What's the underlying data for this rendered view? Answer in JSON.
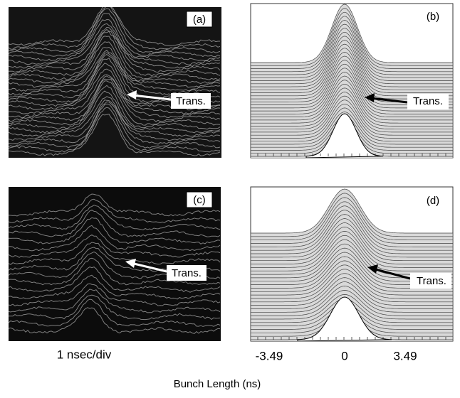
{
  "panels": [
    {
      "label": "(a)",
      "annotation": "Trans."
    },
    {
      "label": "(b)",
      "annotation": "Trans."
    },
    {
      "label": "(c)",
      "annotation": "Trans."
    },
    {
      "label": "(d)",
      "annotation": "Trans."
    }
  ],
  "left_axis_note": "1 nsec/div",
  "right_axis_ticks": [
    "-3.49",
    "0",
    "3.49"
  ],
  "axis_title": "Bunch Length (ns)"
}
